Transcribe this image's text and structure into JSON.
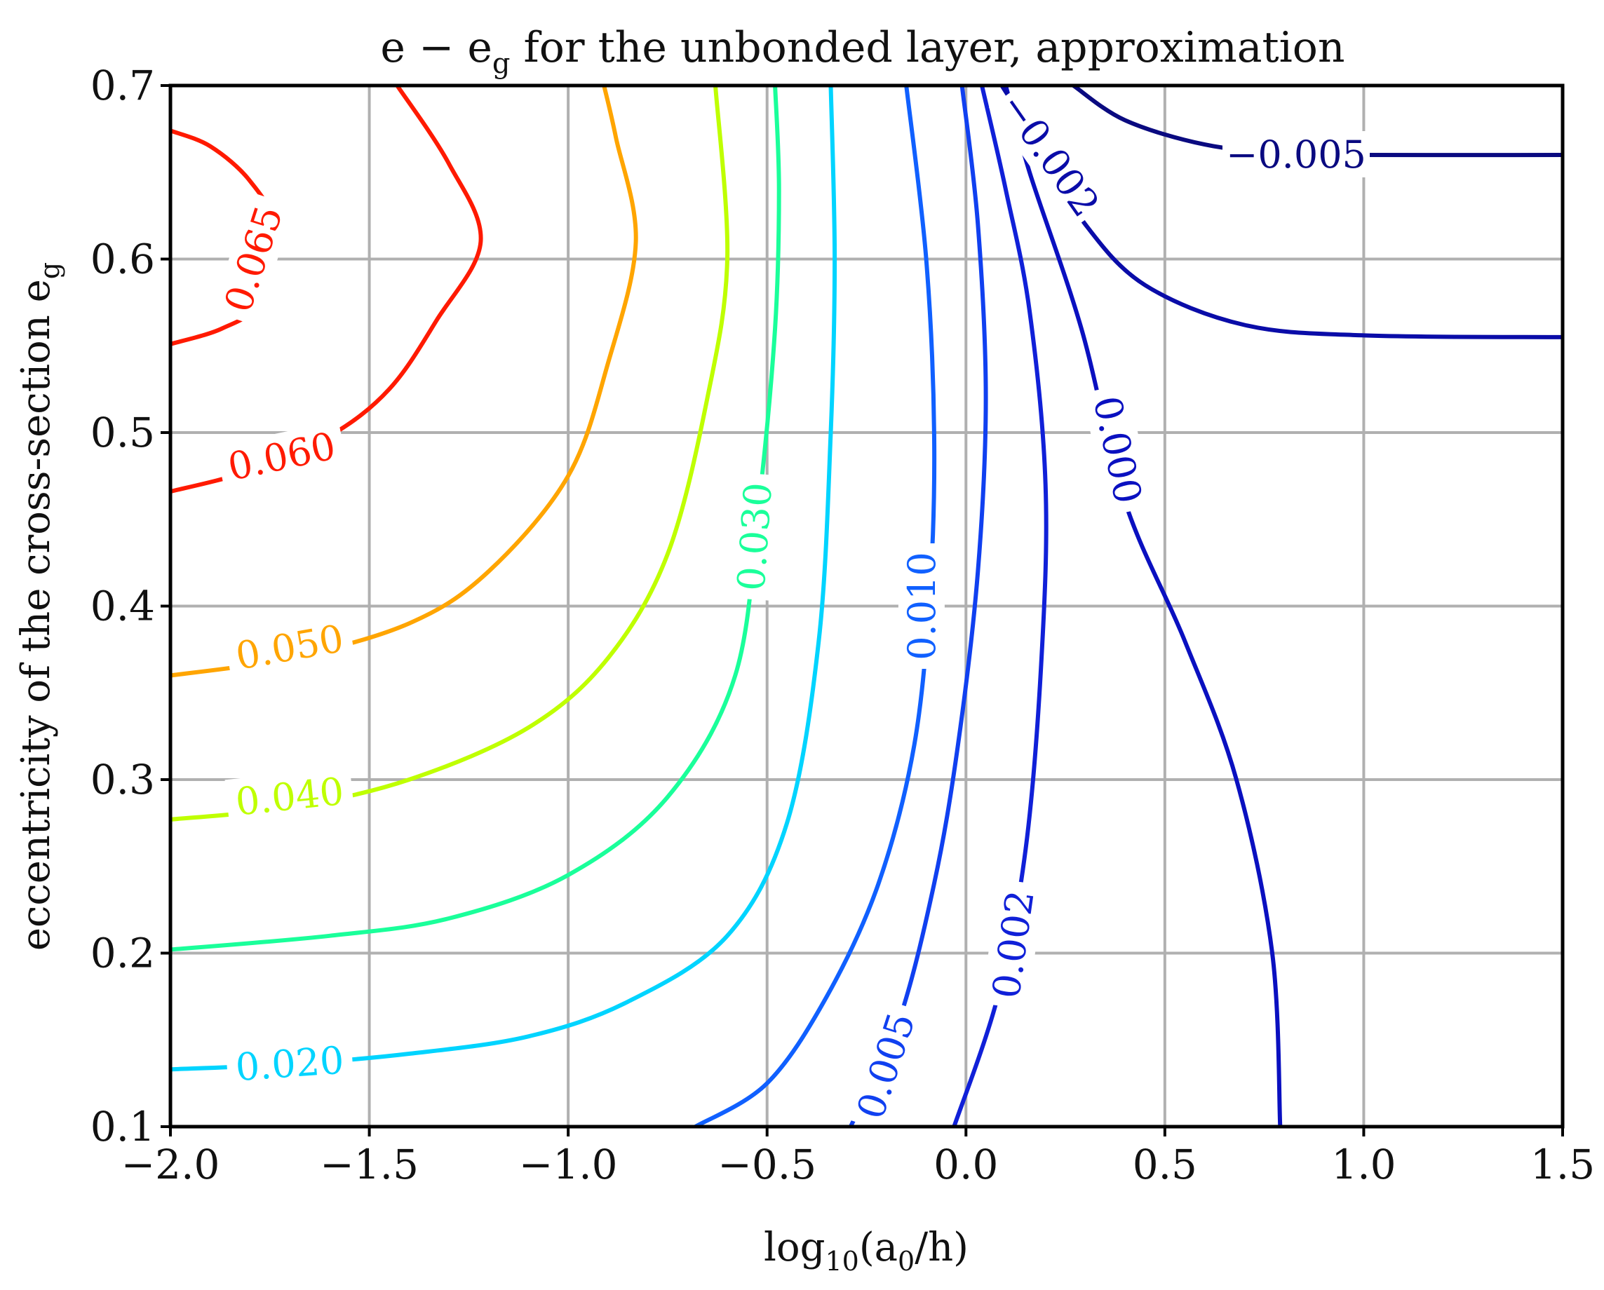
{
  "chart_data": {
    "type": "contour",
    "title": "e − e_g for the unbonded layer, approximation",
    "title_parts": {
      "pre": "e − e",
      "sub": "g",
      "post": " for the unbonded layer, approximation"
    },
    "xlabel_parts": {
      "pre": "log",
      "sub1": "10",
      "mid": "(a",
      "sub2": "0",
      "post": "/h)"
    },
    "ylabel_parts": {
      "pre": "eccentricity of the cross-section e",
      "sub": "g"
    },
    "xlabel": "log10(a0/h)",
    "ylabel": "eccentricity of the cross-section e_g",
    "xlim": [
      -2.0,
      1.5
    ],
    "ylim": [
      0.1,
      0.7
    ],
    "grid": true,
    "x_ticks": [
      -2.0,
      -1.5,
      -1.0,
      -0.5,
      0.0,
      0.5,
      1.0,
      1.5
    ],
    "x_tick_labels": [
      "−2.0",
      "−1.5",
      "−1.0",
      "−0.5",
      "0.0",
      "0.5",
      "1.0",
      "1.5"
    ],
    "y_ticks": [
      0.1,
      0.2,
      0.3,
      0.4,
      0.5,
      0.6,
      0.7
    ],
    "y_tick_labels": [
      "0.1",
      "0.2",
      "0.3",
      "0.4",
      "0.5",
      "0.6",
      "0.7"
    ],
    "levels": [
      {
        "value": 0.065,
        "label": "0.065",
        "color": "#ff1a00",
        "points": [
          [
            -2.0,
            0.674
          ],
          [
            -1.9,
            0.665
          ],
          [
            -1.8,
            0.645
          ],
          [
            -1.74,
            0.618
          ],
          [
            -1.78,
            0.575
          ],
          [
            -1.87,
            0.56
          ],
          [
            -2.0,
            0.551
          ]
        ],
        "label_at": [
          -1.79,
          0.6
        ],
        "label_angle": -72
      },
      {
        "value": 0.06,
        "label": "0.060",
        "color": "#ff1a00",
        "points": [
          [
            -2.0,
            0.466
          ],
          [
            -1.8,
            0.478
          ],
          [
            -1.6,
            0.498
          ],
          [
            -1.45,
            0.525
          ],
          [
            -1.33,
            0.565
          ],
          [
            -1.22,
            0.61
          ],
          [
            -1.3,
            0.655
          ],
          [
            -1.43,
            0.7
          ]
        ],
        "label_at": [
          -1.72,
          0.486
        ],
        "label_angle": -12
      },
      {
        "value": 0.05,
        "label": "0.050",
        "color": "#ffa500",
        "points": [
          [
            -2.0,
            0.36
          ],
          [
            -1.7,
            0.37
          ],
          [
            -1.4,
            0.39
          ],
          [
            -1.2,
            0.42
          ],
          [
            -1.0,
            0.475
          ],
          [
            -0.9,
            0.54
          ],
          [
            -0.83,
            0.61
          ],
          [
            -0.88,
            0.67
          ],
          [
            -0.91,
            0.7
          ]
        ],
        "label_at": [
          -1.7,
          0.376
        ],
        "label_angle": -10
      },
      {
        "value": 0.04,
        "label": "0.040",
        "color": "#bfff00",
        "points": [
          [
            -2.0,
            0.277
          ],
          [
            -1.7,
            0.284
          ],
          [
            -1.4,
            0.3
          ],
          [
            -1.1,
            0.33
          ],
          [
            -0.9,
            0.37
          ],
          [
            -0.75,
            0.43
          ],
          [
            -0.65,
            0.52
          ],
          [
            -0.6,
            0.6
          ],
          [
            -0.63,
            0.7
          ]
        ],
        "label_at": [
          -1.7,
          0.29
        ],
        "label_angle": -6
      },
      {
        "value": 0.03,
        "label": "0.030",
        "color": "#1aff9a",
        "points": [
          [
            -2.0,
            0.202
          ],
          [
            -1.6,
            0.21
          ],
          [
            -1.3,
            0.22
          ],
          [
            -1.0,
            0.245
          ],
          [
            -0.75,
            0.29
          ],
          [
            -0.58,
            0.36
          ],
          [
            -0.52,
            0.46
          ],
          [
            -0.48,
            0.56
          ],
          [
            -0.47,
            0.64
          ],
          [
            -0.48,
            0.7
          ]
        ],
        "label_at": [
          -0.53,
          0.44
        ],
        "label_angle": -86
      },
      {
        "value": 0.02,
        "label": "0.020",
        "color": "#00d4ff",
        "points": [
          [
            -2.0,
            0.133
          ],
          [
            -1.7,
            0.136
          ],
          [
            -1.4,
            0.142
          ],
          [
            -1.1,
            0.152
          ],
          [
            -0.85,
            0.172
          ],
          [
            -0.6,
            0.21
          ],
          [
            -0.45,
            0.275
          ],
          [
            -0.37,
            0.38
          ],
          [
            -0.34,
            0.5
          ],
          [
            -0.33,
            0.6
          ],
          [
            -0.34,
            0.7
          ]
        ],
        "label_at": [
          -1.7,
          0.136
        ],
        "label_angle": -4
      },
      {
        "value": 0.01,
        "label": "0.010",
        "color": "#1060ff",
        "points": [
          [
            -0.68,
            0.1
          ],
          [
            -0.5,
            0.125
          ],
          [
            -0.35,
            0.175
          ],
          [
            -0.22,
            0.24
          ],
          [
            -0.13,
            0.32
          ],
          [
            -0.09,
            0.41
          ],
          [
            -0.08,
            0.5
          ],
          [
            -0.1,
            0.6
          ],
          [
            -0.15,
            0.7
          ]
        ],
        "label_at": [
          -0.11,
          0.4
        ],
        "label_angle": -90
      },
      {
        "value": 0.005,
        "label": "0.005",
        "color": "#1040f0",
        "points": [
          [
            -0.29,
            0.1
          ],
          [
            -0.17,
            0.16
          ],
          [
            -0.08,
            0.24
          ],
          [
            -0.02,
            0.32
          ],
          [
            0.03,
            0.42
          ],
          [
            0.05,
            0.52
          ],
          [
            0.03,
            0.62
          ],
          [
            -0.01,
            0.7
          ]
        ],
        "label_at": [
          -0.2,
          0.135
        ],
        "label_angle": -72
      },
      {
        "value": 0.002,
        "label": "0.002",
        "color": "#1020d8",
        "points": [
          [
            -0.03,
            0.1
          ],
          [
            0.08,
            0.175
          ],
          [
            0.15,
            0.26
          ],
          [
            0.19,
            0.37
          ],
          [
            0.2,
            0.47
          ],
          [
            0.16,
            0.57
          ],
          [
            0.1,
            0.64
          ],
          [
            0.04,
            0.7
          ]
        ],
        "label_at": [
          0.12,
          0.205
        ],
        "label_angle": -82
      },
      {
        "value": 0.0,
        "label": "0.000",
        "color": "#0a10c0",
        "points": [
          [
            0.79,
            0.1
          ],
          [
            0.77,
            0.2
          ],
          [
            0.68,
            0.3
          ],
          [
            0.55,
            0.38
          ],
          [
            0.4,
            0.46
          ],
          [
            0.29,
            0.56
          ],
          [
            0.16,
            0.65
          ],
          [
            0.1,
            0.7
          ]
        ],
        "label_at": [
          0.38,
          0.49
        ],
        "label_angle": 78
      },
      {
        "value": -0.002,
        "label": "−0.002",
        "color": "#0a0ca8",
        "points": [
          [
            0.09,
            0.7
          ],
          [
            0.2,
            0.66
          ],
          [
            0.3,
            0.62
          ],
          [
            0.45,
            0.585
          ],
          [
            0.7,
            0.562
          ],
          [
            1.0,
            0.556
          ],
          [
            1.5,
            0.555
          ]
        ],
        "label_at": [
          0.21,
          0.66
        ],
        "label_angle": 55
      },
      {
        "value": -0.005,
        "label": "−0.005",
        "color": "#0a0a80",
        "points": [
          [
            0.27,
            0.7
          ],
          [
            0.4,
            0.68
          ],
          [
            0.6,
            0.666
          ],
          [
            0.8,
            0.661
          ],
          [
            1.0,
            0.66
          ],
          [
            1.5,
            0.66
          ]
        ],
        "label_at": [
          0.83,
          0.66
        ],
        "label_angle": 0
      }
    ]
  }
}
